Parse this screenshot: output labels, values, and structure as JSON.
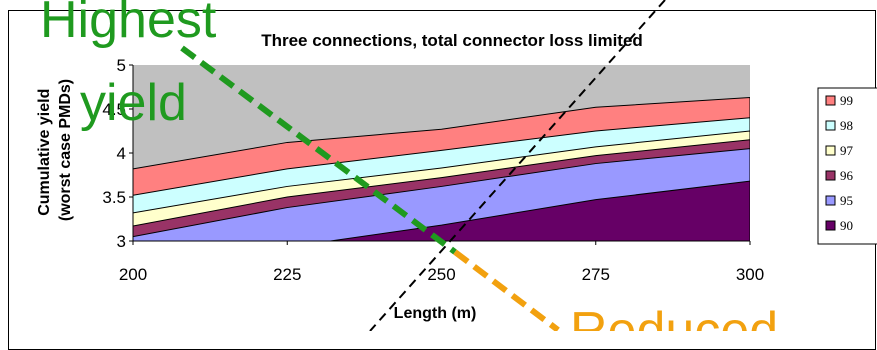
{
  "chart_data": {
    "type": "area",
    "title": "Three connections, total connector loss limited",
    "xlabel": "Length (m)",
    "ylabel": "Cumulative yield (worst case PMDs)",
    "x": [
      200,
      225,
      250,
      275,
      300
    ],
    "xlim": [
      200,
      300
    ],
    "ylim": [
      3,
      5
    ],
    "yticks": [
      "3",
      "3.5",
      "4",
      "4.5",
      "5"
    ],
    "xticks": [
      "200",
      "225",
      "250",
      "275",
      "300"
    ],
    "plot_background": "#c0c0c0",
    "legend_position": "right",
    "series": [
      {
        "name": "90",
        "color": "#660066",
        "values": [
          2.75,
          2.93,
          3.18,
          3.47,
          3.68
        ]
      },
      {
        "name": "95",
        "color": "#9999ff",
        "values": [
          3.05,
          3.38,
          3.62,
          3.88,
          4.05
        ]
      },
      {
        "name": "96",
        "color": "#993366",
        "values": [
          3.17,
          3.5,
          3.72,
          3.97,
          4.15
        ]
      },
      {
        "name": "97",
        "color": "#ffffcc",
        "values": [
          3.32,
          3.62,
          3.83,
          4.07,
          4.25
        ]
      },
      {
        "name": "98",
        "color": "#ccffff",
        "values": [
          3.52,
          3.82,
          4.03,
          4.25,
          4.4
        ]
      },
      {
        "name": "99",
        "color": "#ff8080",
        "values": [
          3.82,
          4.12,
          4.27,
          4.52,
          4.63
        ]
      }
    ],
    "annotations": {
      "highest": {
        "line1": "Highest",
        "line2": "yield",
        "color": "#1f9a1f"
      },
      "reduced": {
        "text": "Reduced",
        "color": "#f2a10f"
      },
      "black_dash_color": "#000000"
    }
  }
}
